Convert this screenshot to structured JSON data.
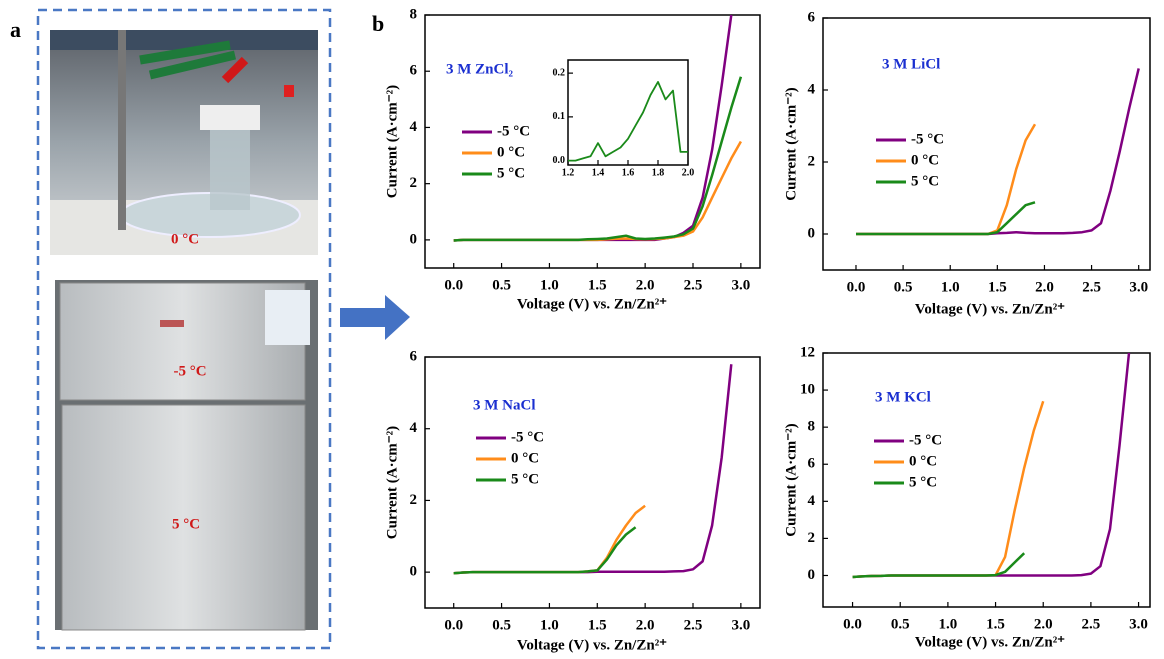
{
  "panel_a": {
    "label": "a",
    "photo_labels": [
      "0 °C",
      "-5 °C",
      "5 °C"
    ]
  },
  "panel_b": {
    "label": "b"
  },
  "chart_data": [
    {
      "type": "line",
      "title": "3 M ZnCl₂",
      "x_label": "Voltage (V) vs. Zn/Zn²⁺",
      "y_label": "Current (A·cm⁻²)",
      "x": [
        0,
        0.1,
        0.2,
        0.3,
        0.4,
        0.5,
        0.6,
        0.7,
        0.8,
        0.9,
        1.0,
        1.1,
        1.2,
        1.3,
        1.4,
        1.5,
        1.6,
        1.7,
        1.8,
        1.9,
        2.0,
        2.1,
        2.2,
        2.3,
        2.4,
        2.5,
        2.6,
        2.7,
        2.8,
        2.9,
        3.0
      ],
      "xlim": [
        -0.3,
        3.2
      ],
      "ylim": [
        -1,
        8
      ],
      "xticks": [
        {
          "value": 0,
          "label": "0.0"
        },
        {
          "value": 0.5,
          "label": "0.5"
        },
        {
          "value": 1,
          "label": "1.0"
        },
        {
          "value": 1.5,
          "label": "1.5"
        },
        {
          "value": 2,
          "label": "2.0"
        },
        {
          "value": 2.5,
          "label": "2.5"
        },
        {
          "value": 3,
          "label": "3.0"
        }
      ],
      "yticks": [
        0,
        2,
        4,
        6,
        8
      ],
      "series": [
        {
          "name": "-5 °C",
          "color": "#800080",
          "values": [
            -0.02,
            0,
            0,
            0,
            0,
            0,
            0,
            0,
            0,
            0,
            0,
            0,
            0,
            0,
            0,
            0,
            0,
            0,
            0,
            0,
            0,
            0,
            0.05,
            0.1,
            0.25,
            0.5,
            1.5,
            3.2,
            5.5,
            8,
            null
          ]
        },
        {
          "name": "0 °C",
          "color": "#ff8c1a",
          "values": [
            -0.02,
            0,
            0,
            0,
            0,
            0,
            0,
            0,
            0,
            0,
            0,
            0,
            0,
            0,
            0,
            0,
            0.02,
            0.04,
            0.05,
            0.03,
            0.02,
            0.03,
            0.05,
            0.1,
            0.15,
            0.3,
            0.8,
            1.5,
            2.2,
            2.9,
            3.5
          ]
        },
        {
          "name": "5 °C",
          "color": "#1a8a1a",
          "values": [
            -0.02,
            0,
            0,
            0,
            0,
            0,
            0,
            0,
            0,
            0,
            0,
            0,
            0,
            0,
            0.02,
            0.03,
            0.05,
            0.1,
            0.15,
            0.05,
            0.03,
            0.05,
            0.08,
            0.12,
            0.2,
            0.4,
            1.2,
            2.3,
            3.5,
            4.7,
            5.8
          ]
        }
      ]
    },
    {
      "type": "line",
      "title": "3 M LiCl",
      "x_label": "Voltage (V) vs. Zn/Zn²⁺",
      "y_label": "Current (A·cm⁻²)",
      "x": [
        0,
        0.1,
        0.2,
        0.3,
        0.4,
        0.5,
        0.6,
        0.7,
        0.8,
        0.9,
        1.0,
        1.1,
        1.2,
        1.3,
        1.4,
        1.5,
        1.6,
        1.7,
        1.8,
        1.9,
        2.0,
        2.1,
        2.2,
        2.3,
        2.4,
        2.5,
        2.6,
        2.7,
        2.8,
        2.9,
        3.0
      ],
      "xlim": [
        -0.35,
        3.12
      ],
      "ylim": [
        -1,
        6
      ],
      "xticks": [
        {
          "value": 0,
          "label": "0.0"
        },
        {
          "value": 0.5,
          "label": "0.5"
        },
        {
          "value": 1,
          "label": "1.0"
        },
        {
          "value": 1.5,
          "label": "1.5"
        },
        {
          "value": 2,
          "label": "2.0"
        },
        {
          "value": 2.5,
          "label": "2.5"
        },
        {
          "value": 3,
          "label": "3.0"
        }
      ],
      "yticks": [
        0,
        2,
        4,
        6
      ],
      "series": [
        {
          "name": "-5 °C",
          "color": "#800080",
          "values": [
            0,
            0,
            0,
            0,
            0,
            0,
            0,
            0,
            0,
            0,
            0,
            0,
            0,
            0,
            0,
            0.02,
            0.03,
            0.05,
            0.03,
            0.02,
            0.02,
            0.02,
            0.02,
            0.03,
            0.05,
            0.1,
            0.3,
            1.2,
            2.3,
            3.5,
            4.6
          ]
        },
        {
          "name": "0 °C",
          "color": "#ff8c1a",
          "values": [
            0,
            0,
            0,
            0,
            0,
            0,
            0,
            0,
            0,
            0,
            0,
            0,
            0,
            0,
            0,
            0.1,
            0.8,
            1.8,
            2.6,
            3.05,
            null,
            null,
            null,
            null,
            null,
            null,
            null,
            null,
            null,
            null,
            null
          ]
        },
        {
          "name": "5 °C",
          "color": "#1a8a1a",
          "values": [
            0,
            0,
            0,
            0,
            0,
            0,
            0,
            0,
            0,
            0,
            0,
            0,
            0,
            0,
            0,
            0.05,
            0.3,
            0.55,
            0.8,
            0.88,
            null,
            null,
            null,
            null,
            null,
            null,
            null,
            null,
            null,
            null,
            null
          ]
        }
      ]
    },
    {
      "type": "line",
      "title": "3 M NaCl",
      "x_label": "Voltage (V) vs. Zn/Zn²⁺",
      "y_label": "Current (A·cm⁻²)",
      "x": [
        0,
        0.1,
        0.2,
        0.3,
        0.4,
        0.5,
        0.6,
        0.7,
        0.8,
        0.9,
        1.0,
        1.1,
        1.2,
        1.3,
        1.4,
        1.5,
        1.6,
        1.7,
        1.8,
        1.9,
        2.0,
        2.1,
        2.2,
        2.3,
        2.4,
        2.5,
        2.6,
        2.7,
        2.8,
        2.9,
        3.0
      ],
      "xlim": [
        -0.3,
        3.2
      ],
      "ylim": [
        -1,
        6
      ],
      "xticks": [
        {
          "value": 0,
          "label": "0.0"
        },
        {
          "value": 0.5,
          "label": "0.5"
        },
        {
          "value": 1,
          "label": "1.0"
        },
        {
          "value": 1.5,
          "label": "1.5"
        },
        {
          "value": 2,
          "label": "2.0"
        },
        {
          "value": 2.5,
          "label": "2.5"
        },
        {
          "value": 3,
          "label": "3.0"
        }
      ],
      "yticks": [
        0,
        2,
        4,
        6
      ],
      "series": [
        {
          "name": "-5 °C",
          "color": "#800080",
          "values": [
            -0.03,
            -0.01,
            0,
            0,
            0,
            0,
            0,
            0,
            0,
            0,
            0,
            0,
            0,
            0,
            0,
            0.01,
            0.01,
            0.01,
            0.01,
            0.01,
            0.01,
            0.01,
            0.01,
            0.02,
            0.03,
            0.08,
            0.3,
            1.3,
            3.2,
            5.8,
            null
          ]
        },
        {
          "name": "0 °C",
          "color": "#ff8c1a",
          "values": [
            -0.03,
            -0.01,
            0,
            0,
            0,
            0,
            0,
            0,
            0,
            0,
            0,
            0,
            0,
            0,
            0.02,
            0.05,
            0.4,
            0.9,
            1.3,
            1.65,
            1.85,
            null,
            null,
            null,
            null,
            null,
            null,
            null,
            null,
            null,
            null
          ]
        },
        {
          "name": "5 °C",
          "color": "#1a8a1a",
          "values": [
            -0.03,
            -0.01,
            0,
            0,
            0,
            0,
            0,
            0,
            0,
            0,
            0,
            0,
            0,
            0,
            0.02,
            0.05,
            0.35,
            0.75,
            1.05,
            1.25,
            null,
            null,
            null,
            null,
            null,
            null,
            null,
            null,
            null,
            null,
            null
          ]
        }
      ]
    },
    {
      "type": "line",
      "title": "3 M KCl",
      "x_label": "Voltage (V) vs. Zn/Zn²⁺",
      "y_label": "Current (A·cm⁻²)",
      "x": [
        0,
        0.1,
        0.2,
        0.3,
        0.4,
        0.5,
        0.6,
        0.7,
        0.8,
        0.9,
        1.0,
        1.1,
        1.2,
        1.3,
        1.4,
        1.5,
        1.6,
        1.7,
        1.8,
        1.9,
        2.0,
        2.1,
        2.2,
        2.3,
        2.4,
        2.5,
        2.6,
        2.7,
        2.8,
        2.9,
        3.0
      ],
      "xlim": [
        -0.31,
        3.12
      ],
      "ylim": [
        -1.7,
        12
      ],
      "xticks": [
        {
          "value": 0,
          "label": "0.0"
        },
        {
          "value": 0.5,
          "label": "0.5"
        },
        {
          "value": 1,
          "label": "1.0"
        },
        {
          "value": 1.5,
          "label": "1.5"
        },
        {
          "value": 2,
          "label": "2.0"
        },
        {
          "value": 2.5,
          "label": "2.5"
        },
        {
          "value": 3,
          "label": "3.0"
        }
      ],
      "yticks": [
        0,
        2,
        4,
        6,
        8,
        10,
        12
      ],
      "series": [
        {
          "name": "-5 °C",
          "color": "#800080",
          "values": [
            -0.08,
            -0.05,
            -0.03,
            -0.02,
            0,
            0,
            0,
            0,
            0,
            0,
            0,
            0,
            0,
            0,
            0,
            0,
            0,
            0,
            0,
            0,
            0,
            0,
            0,
            0,
            0.02,
            0.1,
            0.5,
            2.5,
            7,
            12,
            null
          ]
        },
        {
          "name": "0 °C",
          "color": "#ff8c1a",
          "values": [
            -0.08,
            -0.05,
            -0.03,
            -0.02,
            0,
            0,
            0,
            0,
            0,
            0,
            0,
            0,
            0,
            0,
            0,
            0.02,
            1,
            3.5,
            5.8,
            7.8,
            9.4,
            null,
            null,
            null,
            null,
            null,
            null,
            null,
            null,
            null,
            null
          ]
        },
        {
          "name": "5 °C",
          "color": "#1a8a1a",
          "values": [
            -0.08,
            -0.05,
            -0.03,
            -0.02,
            0,
            0,
            0,
            0,
            0,
            0,
            0,
            0,
            0,
            0,
            0,
            0.02,
            0.2,
            0.7,
            1.2,
            null,
            null,
            null,
            null,
            null,
            null,
            null,
            null,
            null,
            null,
            null,
            null
          ]
        }
      ]
    },
    {
      "type": "line",
      "x": [
        1.2,
        1.25,
        1.3,
        1.35,
        1.4,
        1.45,
        1.5,
        1.55,
        1.6,
        1.65,
        1.7,
        1.75,
        1.8,
        1.85,
        1.9,
        1.95,
        2.0
      ],
      "xlim": [
        1.2,
        2.0
      ],
      "ylim": [
        -0.01,
        0.23
      ],
      "xticks": [
        {
          "value": 1.2,
          "label": "1.2"
        },
        {
          "value": 1.4,
          "label": "1.4"
        },
        {
          "value": 1.6,
          "label": "1.6"
        },
        {
          "value": 1.8,
          "label": "1.8"
        },
        {
          "value": 2,
          "label": "2.0"
        }
      ],
      "yticks": [
        {
          "value": 0,
          "label": "0.0"
        },
        {
          "value": 0.1,
          "label": "0.1"
        },
        {
          "value": 0.2,
          "label": "0.2"
        }
      ],
      "series": [
        {
          "color": "#1a8a1a",
          "values": [
            0,
            0,
            0.005,
            0.01,
            0.04,
            0.01,
            0.02,
            0.03,
            0.05,
            0.08,
            0.11,
            0.15,
            0.18,
            0.14,
            0.16,
            0.02,
            0.02
          ]
        }
      ]
    }
  ]
}
